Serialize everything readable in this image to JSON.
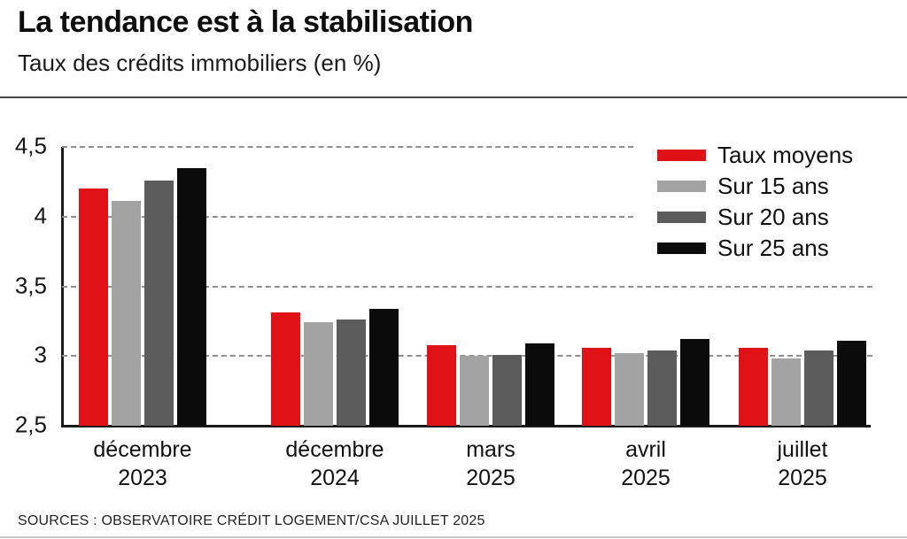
{
  "header": {
    "title": "La tendance est à la stabilisation",
    "subtitle": "Taux des crédits immobiliers (en %)"
  },
  "source": "SOURCES : OBSERVATOIRE CRÉDIT LOGEMENT/CSA JUILLET 2025",
  "chart_data": {
    "type": "bar",
    "title": "Taux des crédits immobiliers (en %)",
    "categories": [
      {
        "line1": "décembre",
        "line2": "2023"
      },
      {
        "line1": "décembre",
        "line2": "2024"
      },
      {
        "line1": "mars",
        "line2": "2025"
      },
      {
        "line1": "avril",
        "line2": "2025"
      },
      {
        "line1": "juillet",
        "line2": "2025"
      }
    ],
    "series": [
      {
        "name": "Taux moyens",
        "color": "#e01217",
        "values": [
          4.2,
          3.31,
          3.08,
          3.06,
          3.06
        ]
      },
      {
        "name": "Sur 15 ans",
        "color": "#a3a3a3",
        "values": [
          4.11,
          3.24,
          3.0,
          3.02,
          2.98
        ]
      },
      {
        "name": "Sur 20 ans",
        "color": "#5c5c5c",
        "values": [
          4.26,
          3.26,
          3.01,
          3.04,
          3.04
        ]
      },
      {
        "name": "Sur 25 ans",
        "color": "#0b0b0b",
        "values": [
          4.35,
          3.34,
          3.09,
          3.12,
          3.11
        ]
      }
    ],
    "xlabel": "",
    "ylabel": "",
    "ylim": [
      2.5,
      4.5
    ],
    "yticks": [
      {
        "value": 4.5,
        "label": "4,5"
      },
      {
        "value": 4.0,
        "label": "4"
      },
      {
        "value": 3.5,
        "label": "3,5"
      },
      {
        "value": 3.0,
        "label": "3"
      },
      {
        "value": 2.5,
        "label": "2,5"
      }
    ],
    "grid": "horizontal-dashed",
    "grid_color": "#8f8f8f",
    "axis_color": "#1a1a1a",
    "legend_position": "top-right"
  }
}
